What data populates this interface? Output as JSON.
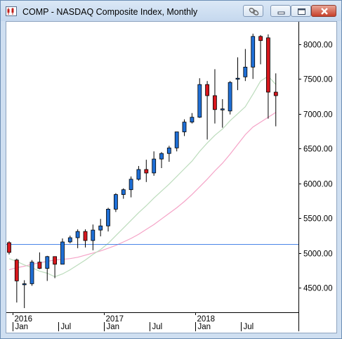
{
  "window": {
    "title": "COMP - NASDAQ Composite Index, Monthly",
    "buttons": [
      "link-icon",
      "minimize-icon",
      "maximize-icon",
      "close-icon"
    ]
  },
  "colors": {
    "up": "#1f6fd6",
    "down": "#d6171d",
    "wick": "#000000",
    "ma_short": "#bcdcbc",
    "ma_long": "#f5a3c7",
    "hline": "#4a86e8"
  },
  "chart_data": {
    "type": "candlestick",
    "title": "COMP - NASDAQ Composite Index, Monthly",
    "ylim": [
      4150,
      8300
    ],
    "y_ticks": [
      "8000.00",
      "7500.00",
      "7000.00",
      "6500.00",
      "6000.00",
      "5500.00",
      "5000.00",
      "4500.00"
    ],
    "year_labels": [
      "2016",
      "2017",
      "2018"
    ],
    "month_labels": [
      "Jan",
      "Jul",
      "Jan",
      "Jul",
      "Jan",
      "Jul"
    ],
    "horizontal_line": 5130,
    "x": [
      "2015-12",
      "2016-01",
      "2016-02",
      "2016-03",
      "2016-04",
      "2016-05",
      "2016-06",
      "2016-07",
      "2016-08",
      "2016-09",
      "2016-10",
      "2016-11",
      "2016-12",
      "2017-01",
      "2017-02",
      "2017-03",
      "2017-04",
      "2017-05",
      "2017-06",
      "2017-07",
      "2017-08",
      "2017-09",
      "2017-10",
      "2017-11",
      "2017-12",
      "2018-01",
      "2018-02",
      "2018-03",
      "2018-04",
      "2018-05",
      "2018-06",
      "2018-07",
      "2018-08",
      "2018-09",
      "2018-10",
      "2018-11"
    ],
    "open": [
      5150,
      4900,
      4560,
      4560,
      4870,
      4780,
      4950,
      4840,
      5160,
      5220,
      5310,
      5180,
      5330,
      5390,
      5630,
      5840,
      5910,
      6060,
      6200,
      6150,
      6350,
      6430,
      6510,
      6740,
      6880,
      6950,
      7420,
      7260,
      7060,
      7040,
      7500,
      7530,
      7670,
      8110,
      8090,
      7310
    ],
    "high": [
      5170,
      4920,
      4610,
      4900,
      5010,
      4960,
      4950,
      5210,
      5250,
      5340,
      5340,
      5410,
      5490,
      5650,
      5860,
      5930,
      6100,
      6250,
      6340,
      6460,
      6450,
      6540,
      6740,
      6920,
      7010,
      7510,
      7470,
      7640,
      7210,
      7470,
      7810,
      7930,
      8150,
      8130,
      8140,
      7580
    ],
    "low": [
      4980,
      4290,
      4210,
      4530,
      4770,
      4600,
      4640,
      4840,
      5140,
      5070,
      5080,
      5040,
      5240,
      5310,
      5590,
      5780,
      5800,
      6040,
      6020,
      6110,
      6220,
      6310,
      6460,
      6680,
      6860,
      6940,
      6630,
      6860,
      6800,
      6990,
      7340,
      7470,
      7500,
      7710,
      6930,
      6820
    ],
    "close": [
      5010,
      4600,
      4560,
      4870,
      4780,
      4950,
      4840,
      5160,
      5220,
      5310,
      5180,
      5330,
      5390,
      5630,
      5840,
      5910,
      6060,
      6200,
      6150,
      6350,
      6430,
      6510,
      6740,
      6880,
      6950,
      7420,
      7260,
      7060,
      7070,
      7450,
      7510,
      7670,
      8110,
      8050,
      7310,
      7260
    ],
    "ma_short": [
      4920,
      4880,
      4830,
      4790,
      4740,
      4710,
      4660,
      4700,
      4760,
      4830,
      4900,
      4980,
      5050,
      5140,
      5250,
      5360,
      5470,
      5580,
      5680,
      5790,
      5890,
      5990,
      6100,
      6210,
      6320,
      6460,
      6580,
      6690,
      6780,
      6900,
      7000,
      7100,
      7280,
      7470,
      7540,
      7420
    ],
    "ma_long": [
      4760,
      4790,
      4810,
      4840,
      4860,
      4880,
      4900,
      4910,
      4920,
      4940,
      4970,
      5000,
      5030,
      5070,
      5110,
      5160,
      5210,
      5270,
      5340,
      5410,
      5490,
      5570,
      5650,
      5740,
      5840,
      5950,
      6060,
      6180,
      6290,
      6420,
      6560,
      6700,
      6810,
      6880,
      6950,
      7020
    ]
  }
}
